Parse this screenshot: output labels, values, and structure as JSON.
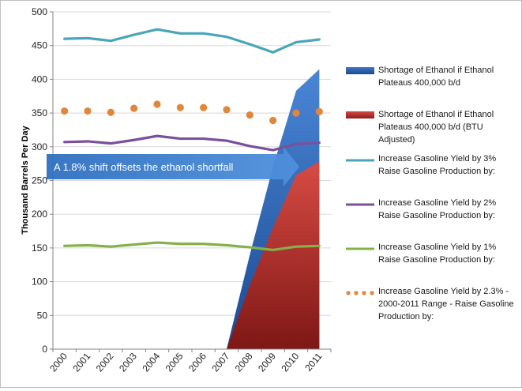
{
  "chart_data": {
    "type": "line",
    "title": "",
    "xlabel": "",
    "ylabel": "Thousand Barrels Per Day",
    "ylim": [
      0,
      500
    ],
    "yticks": [
      0,
      50,
      100,
      150,
      200,
      250,
      300,
      350,
      400,
      450,
      500
    ],
    "categories": [
      "2000",
      "2001",
      "2002",
      "2003",
      "2004",
      "2005",
      "2006",
      "2007",
      "2008",
      "2009",
      "2010",
      "2011"
    ],
    "grid": "horizontal",
    "legend_position": "right",
    "series": [
      {
        "name": "Shortage of Ethanol if Ethanol Plateaus 400,000 b/d",
        "kind": "area",
        "color": "#2458a6",
        "values": [
          0,
          0,
          0,
          0,
          0,
          0,
          0,
          0,
          140,
          270,
          383,
          415
        ]
      },
      {
        "name": "Shortage of Ethanol if Ethanol Plateaus 400,000 b/d (BTU Adjusted)",
        "kind": "area",
        "color": "#b22a28",
        "values": [
          0,
          0,
          0,
          0,
          0,
          0,
          0,
          0,
          95,
          180,
          258,
          278
        ]
      },
      {
        "name": "Increase Gasoline Yield by 3% Raise Gasoline Production by:",
        "kind": "line",
        "color": "#4aa5b8",
        "values": [
          460,
          461,
          457,
          466,
          474,
          468,
          468,
          463,
          452,
          440,
          455,
          459
        ]
      },
      {
        "name": "Increase Gasoline Yield by 2% Raise Gasoline Production by:",
        "kind": "line",
        "color": "#7b4f9c",
        "values": [
          307,
          308,
          305,
          310,
          316,
          312,
          312,
          309,
          301,
          295,
          304,
          306
        ]
      },
      {
        "name": "Increase Gasoline Yield by 1% Raise Gasoline Production by:",
        "kind": "line",
        "color": "#86b04a",
        "values": [
          153,
          154,
          152,
          155,
          158,
          156,
          156,
          154,
          151,
          147,
          152,
          153
        ]
      },
      {
        "name": "Increase Gasoline Yield by 2.3% - 2000-2011 Range - Raise Gasoline Production by:",
        "kind": "dotted",
        "color": "#e0873c",
        "values": [
          353,
          353,
          351,
          357,
          363,
          358,
          358,
          355,
          347,
          339,
          350,
          352
        ]
      }
    ],
    "annotations": [
      {
        "text": "A 1.8% shift offsets the ethanol shortfall",
        "color": "#3a7cc6"
      }
    ]
  }
}
